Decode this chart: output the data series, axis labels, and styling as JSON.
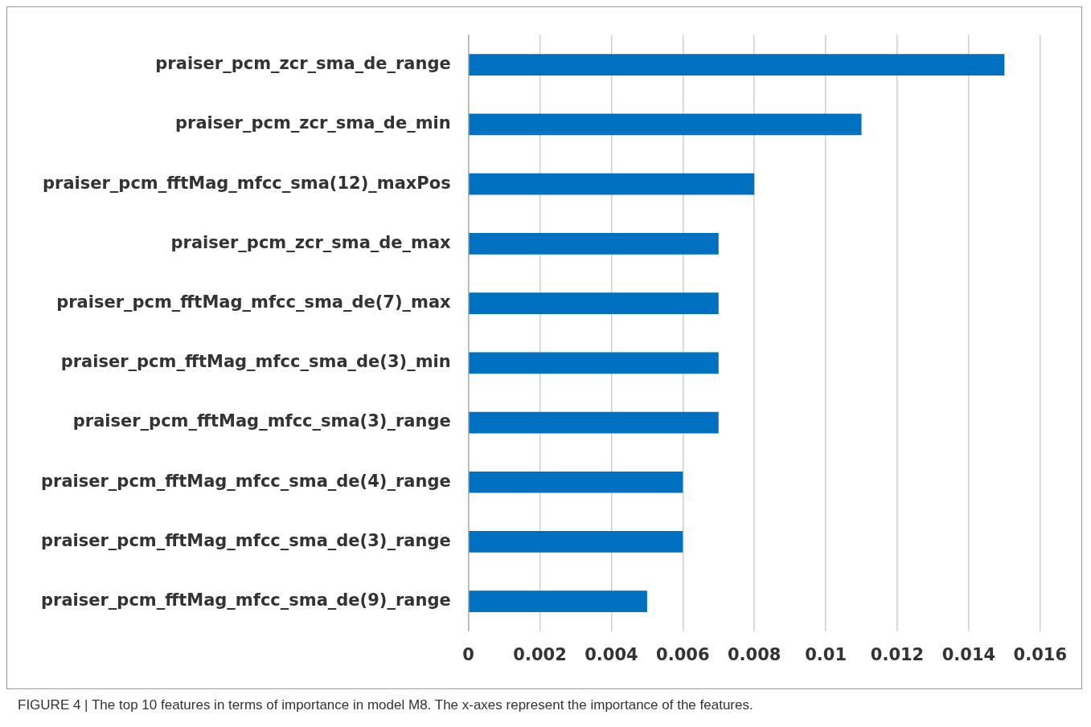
{
  "chart_data": {
    "type": "bar",
    "orientation": "horizontal",
    "categories": [
      "praiser_pcm_zcr_sma_de_range",
      "praiser_pcm_zcr_sma_de_min",
      "praiser_pcm_fftMag_mfcc_sma(12)_maxPos",
      "praiser_pcm_zcr_sma_de_max",
      "praiser_pcm_fftMag_mfcc_sma_de(7)_max",
      "praiser_pcm_fftMag_mfcc_sma_de(3)_min",
      "praiser_pcm_fftMag_mfcc_sma(3)_range",
      "praiser_pcm_fftMag_mfcc_sma_de(4)_range",
      "praiser_pcm_fftMag_mfcc_sma_de(3)_range",
      "praiser_pcm_fftMag_mfcc_sma_de(9)_range"
    ],
    "values": [
      0.015,
      0.011,
      0.008,
      0.007,
      0.007,
      0.007,
      0.007,
      0.006,
      0.006,
      0.005
    ],
    "color": "#0070c0",
    "xlim": [
      0,
      0.016
    ],
    "xticks": [
      0,
      0.002,
      0.004,
      0.006,
      0.008,
      0.01,
      0.012,
      0.014,
      0.016
    ],
    "grid": "x",
    "legend": false,
    "annotations": [
      "FIGURE 4 | The top 10 features in terms of importance in model M8. The x-axes represent the importance of the features."
    ]
  }
}
